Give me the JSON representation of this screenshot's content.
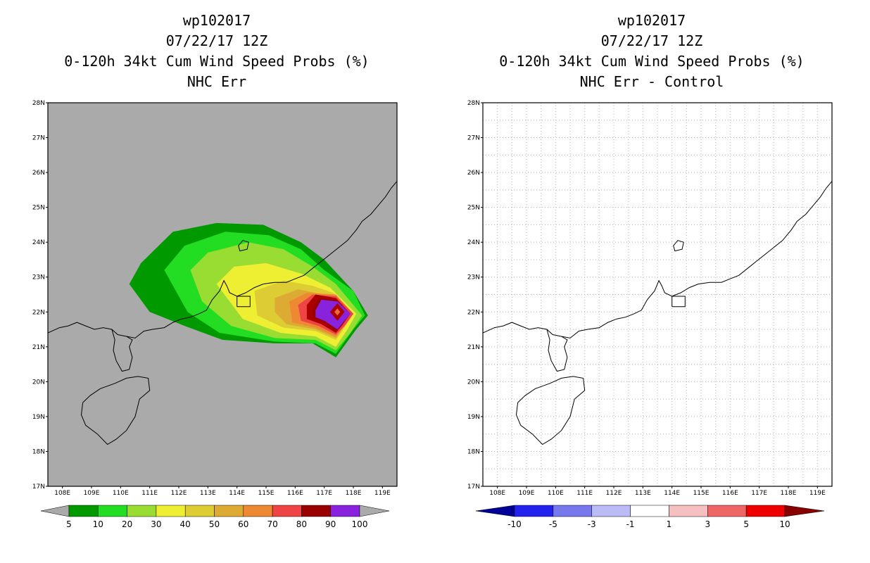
{
  "chart_data": [
    {
      "type": "heatmap",
      "storm_id": "wp102017",
      "datetime": "07/22/17 12Z",
      "title": "0-120h 34kt Cum Wind Speed Probs (%)",
      "subtitle": "NHC Err",
      "x_ticks": [
        "108E",
        "109E",
        "110E",
        "111E",
        "112E",
        "113E",
        "114E",
        "115E",
        "116E",
        "117E",
        "118E",
        "119E"
      ],
      "y_ticks": [
        "17N",
        "18N",
        "19N",
        "20N",
        "21N",
        "22N",
        "23N",
        "24N",
        "25N",
        "26N",
        "27N",
        "28N"
      ],
      "xlim": [
        107.5,
        119.5
      ],
      "ylim": [
        17,
        28
      ],
      "grid": false,
      "colorbar": {
        "labels": [
          "5",
          "10",
          "20",
          "30",
          "40",
          "50",
          "60",
          "70",
          "80",
          "90",
          "100"
        ],
        "colors": [
          "#009900",
          "#22dd22",
          "#99dd33",
          "#eeee33",
          "#ddcc33",
          "#ddaa33",
          "#ee8833",
          "#ee4444",
          "#aa0000",
          "#990000",
          "#8822dd"
        ]
      },
      "probability_field": {
        "levels": [
          5,
          10,
          20,
          30,
          40,
          50,
          60,
          70,
          80,
          90
        ],
        "center_lon": 117.5,
        "center_lat": 22.0
      }
    },
    {
      "type": "heatmap",
      "storm_id": "wp102017",
      "datetime": "07/22/17 12Z",
      "title": "0-120h 34kt Cum Wind Speed Probs (%)",
      "subtitle": "NHC Err - Control",
      "x_ticks": [
        "108E",
        "109E",
        "110E",
        "111E",
        "112E",
        "113E",
        "114E",
        "115E",
        "116E",
        "117E",
        "118E",
        "119E"
      ],
      "y_ticks": [
        "17N",
        "18N",
        "19N",
        "20N",
        "21N",
        "22N",
        "23N",
        "24N",
        "25N",
        "26N",
        "27N",
        "28N"
      ],
      "xlim": [
        107.5,
        119.5
      ],
      "ylim": [
        17,
        28
      ],
      "grid": true,
      "colorbar": {
        "labels": [
          "-10",
          "-5",
          "-3",
          "-1",
          "1",
          "3",
          "5",
          "10"
        ],
        "colors": [
          "#000099",
          "#2222ee",
          "#7777ee",
          "#bbbbf5",
          "#ffffff",
          "#f5c0c0",
          "#ee6666",
          "#ee0000",
          "#880000"
        ]
      }
    }
  ]
}
